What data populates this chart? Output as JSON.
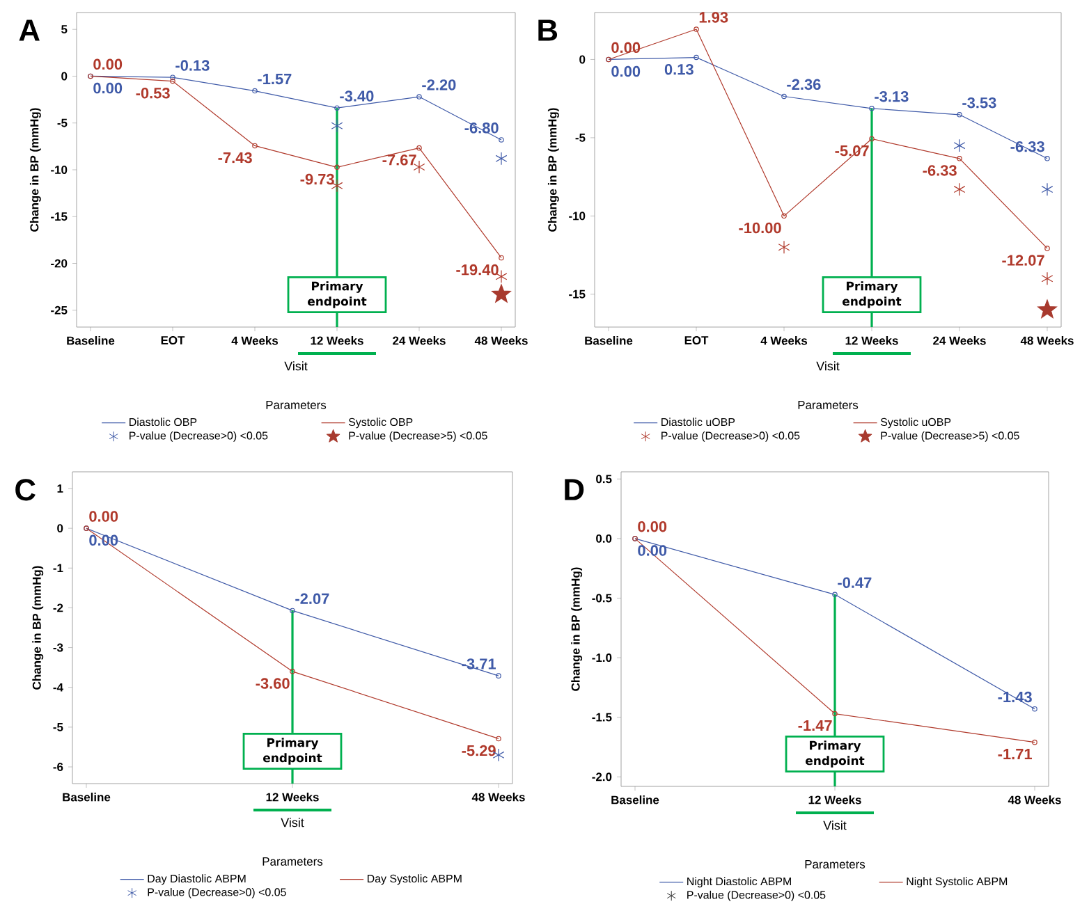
{
  "chart_data": [
    {
      "type": "line",
      "title": "A",
      "xlabel": "Visit",
      "ylabel": "Change in BP (mmHg)",
      "legend_title": "Parameters",
      "legend": "bottom",
      "marker": "circle",
      "categories": [
        "Baseline",
        "EOT",
        "4 Weeks",
        "12 Weeks",
        "24 Weeks",
        "48 Weeks"
      ],
      "ylim": [
        -26.8,
        6.8
      ],
      "yticks": [
        -25,
        -20,
        -15,
        -10,
        -5,
        0,
        5
      ],
      "series": [
        {
          "name": "Diastolic OBP",
          "color": "#3f5aa8",
          "values": [
            0,
            -0.13,
            -1.57,
            -3.4,
            -2.2,
            -6.8
          ],
          "value_labels": [
            "0.00",
            "-0.13",
            "-1.57",
            "-3.40",
            "-2.20",
            "-6.80"
          ]
        },
        {
          "name": "Systolic OBP",
          "color": "#b0392b",
          "values": [
            0,
            -0.53,
            -7.43,
            -9.73,
            -7.67,
            -19.4
          ],
          "value_labels": [
            "0.00",
            "-0.53",
            "-7.43",
            "-9.73",
            "-7.67",
            "-19.40"
          ]
        },
        {
          "type": "scatter",
          "marker": "cross",
          "name": "P-value (Decrease>0) <0.05",
          "x": [
            "12 Weeks",
            "12 Weeks",
            "24 Weeks",
            "48 Weeks",
            "48 Weeks"
          ],
          "values": [
            -5.3,
            -11.7,
            -9.7,
            -8.8,
            -21.4
          ],
          "colors": [
            "#3f5aa8",
            "#b0392b",
            "#b0392b",
            "#3f5aa8",
            "#b0392b"
          ]
        },
        {
          "type": "scatter",
          "marker": "star",
          "name": "P-value (Decrease>5) <0.05",
          "x": [
            "48 Weeks"
          ],
          "values": [
            -23.3
          ],
          "colors": [
            "#a83a2e"
          ]
        }
      ],
      "ref_lines": [
        {
          "axis": "x",
          "value": "12 Weeks",
          "label": "Primary endpoint",
          "color": "#00b04f"
        }
      ]
    },
    {
      "type": "line",
      "title": "B",
      "xlabel": "Visit",
      "ylabel": "Change in BP (mmHg)",
      "legend_title": "Parameters",
      "legend": "bottom",
      "marker": "circle",
      "categories": [
        "Baseline",
        "EOT",
        "4 Weeks",
        "12 Weeks",
        "24 Weeks",
        "48 Weeks"
      ],
      "ylim": [
        -17.1,
        3.0
      ],
      "yticks": [
        -15,
        -10,
        -5,
        0
      ],
      "series": [
        {
          "name": "Diastolic uOBP",
          "color": "#3f5aa8",
          "values": [
            0,
            0.13,
            -2.36,
            -3.13,
            -3.53,
            -6.33
          ],
          "value_labels": [
            "0.00",
            "0.13",
            "-2.36",
            "-3.13",
            "-3.53",
            "-6.33"
          ]
        },
        {
          "name": "Systolic uOBP",
          "color": "#b0392b",
          "values": [
            0,
            1.93,
            -10.0,
            -5.07,
            -6.33,
            -12.07
          ],
          "value_labels": [
            "0.00",
            "1.93",
            "-10.00",
            "-5.07",
            "-6.33",
            "-12.07"
          ]
        },
        {
          "type": "scatter",
          "marker": "cross",
          "name": "P-value (Decrease>0) <0.05",
          "x": [
            "4 Weeks",
            "24 Weeks",
            "24 Weeks",
            "48 Weeks",
            "48 Weeks"
          ],
          "values": [
            -12.0,
            -5.5,
            -8.3,
            -8.3,
            -14.0
          ],
          "colors": [
            "#b0392b",
            "#3f5aa8",
            "#b0392b",
            "#3f5aa8",
            "#b0392b"
          ]
        },
        {
          "type": "scatter",
          "marker": "star",
          "name": "P-value (Decrease>5) <0.05",
          "x": [
            "48 Weeks"
          ],
          "values": [
            -16.0
          ],
          "colors": [
            "#a83a2e"
          ]
        }
      ],
      "ref_lines": [
        {
          "axis": "x",
          "value": "12 Weeks",
          "label": "Primary endpoint",
          "color": "#00b04f"
        }
      ]
    },
    {
      "type": "line",
      "title": "C",
      "xlabel": "Visit",
      "ylabel": "Change in BP (mmHg)",
      "legend_title": "Parameters",
      "legend": "bottom",
      "marker": "circle",
      "categories": [
        "Baseline",
        "12 Weeks",
        "48 Weeks"
      ],
      "ylim": [
        -6.42,
        1.42
      ],
      "yticks": [
        -6,
        -5,
        -4,
        -3,
        -2,
        -1,
        0,
        1
      ],
      "series": [
        {
          "name": "Day Diastolic ABPM",
          "color": "#3f5aa8",
          "values": [
            0,
            -2.07,
            -3.71
          ],
          "value_labels": [
            "0.00",
            "-2.07",
            "-3.71"
          ]
        },
        {
          "name": "Day Systolic ABPM",
          "color": "#b0392b",
          "values": [
            0,
            -3.6,
            -5.29
          ],
          "value_labels": [
            "0.00",
            "-3.60",
            "-5.29"
          ]
        },
        {
          "type": "scatter",
          "marker": "cross",
          "name": "P-value (Decrease>0) <0.05",
          "x": [
            "48 Weeks"
          ],
          "values": [
            -5.7
          ],
          "colors": [
            "#3f5aa8"
          ]
        }
      ],
      "ref_lines": [
        {
          "axis": "x",
          "value": "12 Weeks",
          "label": "Primary endpoint",
          "color": "#00b04f"
        }
      ]
    },
    {
      "type": "line",
      "title": "D",
      "xlabel": "Visit",
      "ylabel": "Change in BP (mmHg)",
      "legend_title": "Parameters",
      "legend": "bottom",
      "marker": "circle",
      "categories": [
        "Baseline",
        "12 Weeks",
        "48 Weeks"
      ],
      "ylim": [
        -2.08,
        0.56
      ],
      "yticks": [
        {
          "value": -2,
          "label": "-2.0"
        },
        -1.5,
        {
          "value": -1,
          "label": "-1.0"
        },
        -0.5,
        {
          "value": 0,
          "label": "0.0"
        },
        0.5
      ],
      "series": [
        {
          "name": "Night Diastolic ABPM",
          "color": "#3f5aa8",
          "values": [
            0,
            -0.47,
            -1.43
          ],
          "value_labels": [
            "0.00",
            "-0.47",
            "-1.43"
          ]
        },
        {
          "name": "Night Systolic ABPM",
          "color": "#b0392b",
          "values": [
            0,
            -1.47,
            -1.71
          ],
          "value_labels": [
            "0.00",
            "-1.47",
            "-1.71"
          ]
        },
        {
          "type": "scatter",
          "marker": "cross",
          "name": "P-value (Decrease>0) <0.05",
          "color": "#333333",
          "values": [
            null,
            null,
            null
          ]
        }
      ],
      "ref_lines": [
        {
          "axis": "x",
          "value": "12 Weeks",
          "label": "Primary endpoint",
          "color": "#00b04f"
        }
      ]
    }
  ]
}
